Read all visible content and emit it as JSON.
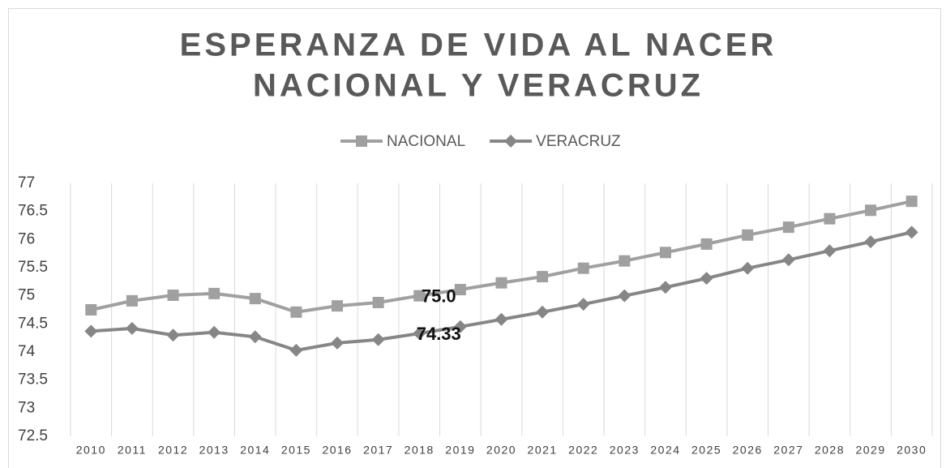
{
  "chart_data": {
    "type": "line",
    "title": [
      "ESPERANZA DE VIDA AL NACER",
      "NACIONAL Y VERACRUZ"
    ],
    "categories": [
      "2010",
      "2011",
      "2012",
      "2013",
      "2014",
      "2015",
      "2016",
      "2017",
      "2018",
      "2019",
      "2020",
      "2021",
      "2022",
      "2023",
      "2024",
      "2025",
      "2026",
      "2027",
      "2028",
      "2029",
      "2030"
    ],
    "series": [
      {
        "name": "NACIONAL",
        "color": "#a0a0a0",
        "marker": "square",
        "values": [
          74.75,
          74.91,
          75.01,
          75.04,
          74.95,
          74.71,
          74.82,
          74.88,
          75.0,
          75.11,
          75.23,
          75.34,
          75.49,
          75.62,
          75.77,
          75.92,
          76.08,
          76.22,
          76.37,
          76.52,
          76.68
        ],
        "value_labels": [
          null,
          null,
          null,
          null,
          null,
          null,
          null,
          null,
          "75.0",
          null,
          null,
          null,
          null,
          null,
          null,
          null,
          null,
          null,
          null,
          null,
          null
        ]
      },
      {
        "name": "VERACRUZ",
        "color": "#868686",
        "marker": "diamond",
        "values": [
          74.37,
          74.42,
          74.3,
          74.35,
          74.27,
          74.03,
          74.16,
          74.22,
          74.33,
          74.45,
          74.58,
          74.71,
          74.85,
          75.0,
          75.15,
          75.31,
          75.49,
          75.64,
          75.8,
          75.96,
          76.13
        ],
        "value_labels": [
          null,
          null,
          null,
          null,
          null,
          null,
          null,
          null,
          "74.33",
          null,
          null,
          null,
          null,
          null,
          null,
          null,
          null,
          null,
          null,
          null,
          null
        ]
      }
    ],
    "ylim": [
      72.5,
      77
    ],
    "yticks": [
      72.5,
      73,
      73.5,
      74,
      74.5,
      75,
      75.5,
      76,
      76.5,
      77
    ],
    "grid": "vertical",
    "legend": "top"
  }
}
